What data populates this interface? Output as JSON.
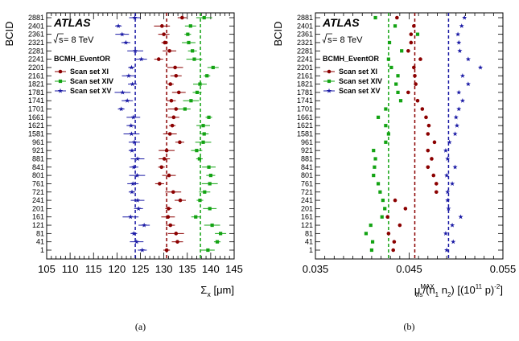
{
  "chart_data": [
    {
      "type": "scatter",
      "panel_label": "(a)",
      "logo": "ATLAS",
      "energy_sqrt": "s",
      "energy_rest": " = 8 TeV",
      "algorithm": "BCMH_EventOR",
      "ylabel": "BCID",
      "xlabel_main": "Σ",
      "xlabel_sub": "x",
      "xlabel_unit": " [μm]",
      "xlim": [
        105,
        145
      ],
      "xticks": [
        105,
        110,
        115,
        120,
        125,
        130,
        135,
        140,
        145
      ],
      "xtick_labels": [
        "105",
        "110",
        "115",
        "120",
        "125",
        "130",
        "135",
        "140",
        "145"
      ],
      "categories": [
        "1",
        "41",
        "81",
        "121",
        "161",
        "201",
        "241",
        "721",
        "761",
        "801",
        "841",
        "881",
        "921",
        "961",
        "1581",
        "1621",
        "1661",
        "1701",
        "1741",
        "1781",
        "1821",
        "2161",
        "2201",
        "2241",
        "2281",
        "2321",
        "2361",
        "2401",
        "2881"
      ],
      "series": [
        {
          "name": "Scan set XI",
          "color": "#8b0000",
          "marker": "circle",
          "mean": 130.6,
          "values": [
            130.6,
            132.9,
            132.6,
            131.4,
            130.9,
            131.0,
            133.5,
            132.0,
            129.1,
            131.1,
            129.5,
            130.1,
            130.6,
            133.4,
            131.3,
            131.8,
            132.1,
            132.6,
            131.6,
            133.2,
            131.4,
            132.6,
            132.4,
            128.9,
            131.2,
            130.2,
            130.0,
            129.6,
            133.9
          ]
        },
        {
          "name": "Scan set XIV",
          "color": "#13a313",
          "marker": "square",
          "mean": 137.8,
          "values": [
            139.4,
            141.4,
            142.1,
            140.3,
            136.8,
            139.8,
            137.7,
            138.7,
            139.8,
            140.0,
            139.6,
            137.6,
            137.0,
            138.4,
            138.6,
            138.4,
            139.6,
            134.5,
            135.8,
            137.1,
            137.7,
            139.2,
            140.5,
            136.5,
            136.1,
            135.3,
            135.1,
            135.7,
            138.6
          ]
        },
        {
          "name": "Scan set XV",
          "color": "#1a1aa5",
          "marker": "star",
          "mean": 123.9,
          "values": [
            125.4,
            124.2,
            123.6,
            125.8,
            122.9,
            124.6,
            124.4,
            123.2,
            123.4,
            124.3,
            123.6,
            124.4,
            123.2,
            123.7,
            123.1,
            123.0,
            123.5,
            120.9,
            122.2,
            121.2,
            123.3,
            122.5,
            123.1,
            125.2,
            123.9,
            121.9,
            121.1,
            120.3,
            123.8
          ]
        }
      ]
    },
    {
      "type": "scatter",
      "panel_label": "(b)",
      "logo": "ATLAS",
      "energy_sqrt": "s",
      "energy_rest": " = 8 TeV",
      "algorithm": "BCMH_EventOR",
      "ylabel": "BCID",
      "xlabel_mu": "μ",
      "xlabel_sub": "vis",
      "xlabel_sup": "MAX",
      "xlabel_rest": "/(n",
      "xlabel_n1": "1",
      "xlabel_n2_pre": " n",
      "xlabel_n2": "2",
      "xlabel_mid": ") [(10",
      "xlabel_exp11": "11",
      "xlabel_p": " p)",
      "xlabel_exp2": "-2",
      "xlabel_close": "]",
      "xlim": [
        0.035,
        0.055
      ],
      "xticks": [
        0.035,
        0.045,
        0.055
      ],
      "xtick_labels": [
        "0.035",
        "0.045",
        "0.055"
      ],
      "categories": [
        "1",
        "41",
        "81",
        "121",
        "161",
        "201",
        "241",
        "721",
        "761",
        "801",
        "841",
        "881",
        "921",
        "961",
        "1581",
        "1621",
        "1661",
        "1701",
        "1741",
        "1781",
        "1821",
        "2161",
        "2201",
        "2241",
        "2281",
        "2321",
        "2361",
        "2401",
        "2881"
      ],
      "series": [
        {
          "name": "Scan set XI",
          "color": "#8b0000",
          "marker": "circle",
          "mean": 0.0456,
          "values": [
            0.0433,
            0.0434,
            0.0428,
            0.044,
            0.0427,
            0.0446,
            0.0435,
            0.0479,
            0.0479,
            0.0476,
            0.047,
            0.0474,
            0.047,
            0.0477,
            0.047,
            0.0471,
            0.0468,
            0.0464,
            0.0459,
            0.0449,
            0.0457,
            0.0456,
            0.0455,
            0.0462,
            0.0449,
            0.0452,
            0.0452,
            0.0455,
            0.0437
          ]
        },
        {
          "name": "Scan set XIV",
          "color": "#13a313",
          "marker": "square",
          "mean": 0.0428,
          "values": [
            0.041,
            0.0411,
            0.0404,
            0.0409,
            0.0421,
            0.0424,
            0.0422,
            0.0419,
            0.0417,
            0.0412,
            0.0413,
            0.0414,
            0.0412,
            0.0425,
            0.0428,
            0.0425,
            0.0417,
            0.0425,
            0.0441,
            0.0438,
            0.0436,
            0.0438,
            0.0431,
            0.0428,
            0.0442,
            0.0429,
            0.0459,
            0.0435,
            0.0414
          ]
        },
        {
          "name": "Scan set XV",
          "color": "#1a1aa5",
          "marker": "star",
          "mean": 0.0492,
          "values": [
            0.049,
            0.0497,
            0.0489,
            0.0496,
            0.0505,
            0.0492,
            0.0491,
            0.0491,
            0.0496,
            0.049,
            0.0499,
            0.0491,
            0.0489,
            0.0493,
            0.0499,
            0.0501,
            0.05,
            0.0503,
            0.0507,
            0.0503,
            0.0513,
            0.0507,
            0.0526,
            0.0513,
            0.0504,
            0.0503,
            0.0502,
            0.0506,
            0.0509
          ]
        }
      ]
    }
  ]
}
